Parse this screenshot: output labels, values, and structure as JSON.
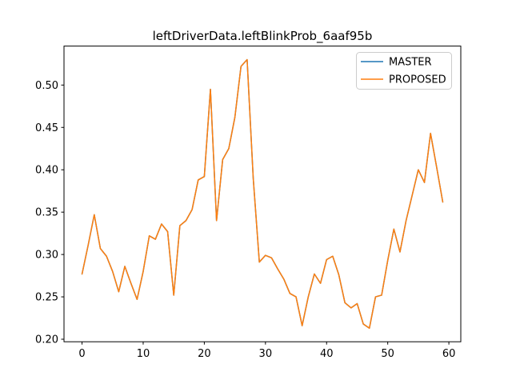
{
  "window": {
    "background": "#ffffff"
  },
  "chart_data": {
    "type": "line",
    "title": "leftDriverData.leftBlinkProb_6aaf95b",
    "xlabel": "",
    "ylabel": "",
    "grid": false,
    "legend": {
      "position": "upper right",
      "entries": [
        "MASTER",
        "PROPOSED"
      ]
    },
    "x": [
      0,
      1,
      2,
      3,
      4,
      5,
      6,
      7,
      8,
      9,
      10,
      11,
      12,
      13,
      14,
      15,
      16,
      17,
      18,
      19,
      20,
      21,
      22,
      23,
      24,
      25,
      26,
      27,
      28,
      29,
      30,
      31,
      32,
      33,
      34,
      35,
      36,
      37,
      38,
      39,
      40,
      41,
      42,
      43,
      44,
      45,
      46,
      47,
      48,
      49,
      50,
      51,
      52,
      53,
      54,
      55,
      56,
      57,
      58,
      59
    ],
    "series": [
      {
        "name": "MASTER",
        "color": "#1f77b4",
        "values": [
          0.277,
          0.311,
          0.347,
          0.307,
          0.298,
          0.28,
          0.256,
          0.286,
          0.266,
          0.247,
          0.28,
          0.322,
          0.318,
          0.336,
          0.327,
          0.252,
          0.334,
          0.34,
          0.353,
          0.388,
          0.392,
          0.495,
          0.34,
          0.412,
          0.425,
          0.462,
          0.522,
          0.53,
          0.39,
          0.291,
          0.299,
          0.296,
          0.283,
          0.271,
          0.254,
          0.25,
          0.216,
          0.25,
          0.277,
          0.266,
          0.294,
          0.298,
          0.276,
          0.243,
          0.237,
          0.242,
          0.218,
          0.213,
          0.25,
          0.252,
          0.293,
          0.33,
          0.303,
          0.34,
          0.37,
          0.4,
          0.385,
          0.443,
          0.403,
          0.362
        ]
      },
      {
        "name": "PROPOSED",
        "color": "#ff7f0e",
        "values": [
          0.277,
          0.311,
          0.347,
          0.307,
          0.298,
          0.28,
          0.256,
          0.286,
          0.266,
          0.247,
          0.28,
          0.322,
          0.318,
          0.336,
          0.327,
          0.252,
          0.334,
          0.34,
          0.353,
          0.388,
          0.392,
          0.495,
          0.34,
          0.412,
          0.425,
          0.462,
          0.522,
          0.53,
          0.39,
          0.291,
          0.299,
          0.296,
          0.283,
          0.271,
          0.254,
          0.25,
          0.216,
          0.25,
          0.277,
          0.266,
          0.294,
          0.298,
          0.276,
          0.243,
          0.237,
          0.242,
          0.218,
          0.213,
          0.25,
          0.252,
          0.293,
          0.33,
          0.303,
          0.34,
          0.37,
          0.4,
          0.385,
          0.443,
          0.403,
          0.362
        ]
      }
    ],
    "xlim": [
      -2.95,
      61.95
    ],
    "ylim": [
      0.197,
      0.546
    ],
    "x_ticks": [
      0,
      10,
      20,
      30,
      40,
      50,
      60
    ],
    "x_tick_labels": [
      "0",
      "10",
      "20",
      "30",
      "40",
      "50",
      "60"
    ],
    "y_ticks": [
      0.2,
      0.25,
      0.3,
      0.35,
      0.4,
      0.45,
      0.5
    ],
    "y_tick_labels": [
      "0.20",
      "0.25",
      "0.30",
      "0.35",
      "0.40",
      "0.45",
      "0.50"
    ]
  },
  "colors": {
    "spine": "#000000",
    "tick": "#000000",
    "legend_border": "#cccccc",
    "legend_background": "#ffffff"
  }
}
